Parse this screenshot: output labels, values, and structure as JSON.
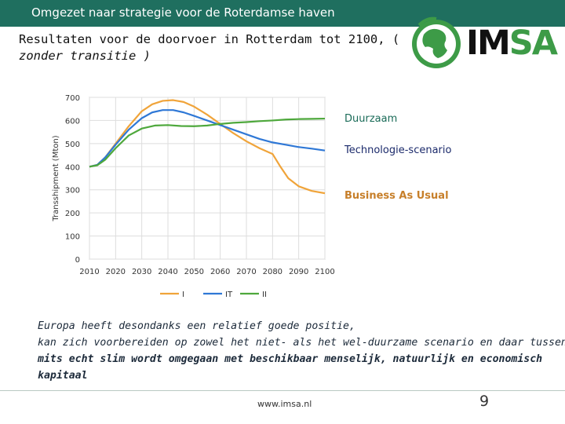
{
  "header": {
    "title": "Omgezet naar strategie voor de Roterdamse haven"
  },
  "slide": {
    "title_line1": "Resultaten voor de doorvoer in Rotterdam tot 2100, (",
    "title_line2": "zonder transitie )"
  },
  "logo": {
    "brand": "IMSA",
    "brand_prefix": "IM",
    "brand_suffix": "SA"
  },
  "colors": {
    "I": "#f0a43a",
    "IT": "#2f78d6",
    "II": "#4ea83c",
    "header_bg": "#1f6f5f"
  },
  "chart_data": {
    "type": "line",
    "title": "",
    "xlabel": "",
    "ylabel": "Transshipment (Mton)",
    "xlim": [
      2010,
      2100
    ],
    "ylim": [
      0,
      700
    ],
    "x_ticks": [
      2010,
      2020,
      2030,
      2040,
      2050,
      2060,
      2070,
      2080,
      2090,
      2100
    ],
    "y_ticks": [
      0,
      100,
      200,
      300,
      400,
      500,
      600,
      700
    ],
    "grid": true,
    "legend_position": "bottom",
    "series": [
      {
        "name": "I",
        "color": "#f0a43a",
        "x": [
          2010,
          2013,
          2016,
          2020,
          2025,
          2030,
          2034,
          2038,
          2042,
          2046,
          2050,
          2055,
          2060,
          2065,
          2070,
          2075,
          2080,
          2083,
          2086,
          2090,
          2095,
          2100
        ],
        "y": [
          400,
          408,
          440,
          500,
          575,
          640,
          670,
          685,
          688,
          680,
          660,
          625,
          585,
          545,
          510,
          480,
          455,
          400,
          350,
          315,
          295,
          285
        ]
      },
      {
        "name": "IT",
        "color": "#2f78d6",
        "x": [
          2010,
          2013,
          2016,
          2020,
          2025,
          2030,
          2034,
          2038,
          2042,
          2046,
          2050,
          2055,
          2060,
          2065,
          2070,
          2075,
          2080,
          2085,
          2090,
          2095,
          2100
        ],
        "y": [
          400,
          408,
          440,
          495,
          560,
          610,
          635,
          645,
          645,
          635,
          620,
          600,
          580,
          560,
          540,
          520,
          505,
          495,
          485,
          478,
          470
        ]
      },
      {
        "name": "II",
        "color": "#4ea83c",
        "x": [
          2010,
          2013,
          2016,
          2020,
          2025,
          2030,
          2035,
          2040,
          2045,
          2050,
          2055,
          2060,
          2065,
          2070,
          2075,
          2080,
          2085,
          2090,
          2095,
          2100
        ],
        "y": [
          400,
          406,
          430,
          480,
          535,
          565,
          578,
          580,
          576,
          575,
          578,
          585,
          590,
          593,
          597,
          600,
          604,
          606,
          607,
          608
        ]
      }
    ]
  },
  "scenario_legend": {
    "duurzaam": "Duurzaam",
    "technologie": "Technologie-scenario",
    "bau": "Business As Usual"
  },
  "body": {
    "line1": "Europa heeft desondanks een relatief goede positie,",
    "line2": "kan zich voorbereiden op zowel het niet- als het wel-duurzame scenario en daar tussenin,",
    "line3": "mits echt slim wordt omgegaan met beschikbaar menselijk, natuurlijk en economisch kapitaal"
  },
  "footer": {
    "url": "www.imsa.nl",
    "page": "9"
  }
}
